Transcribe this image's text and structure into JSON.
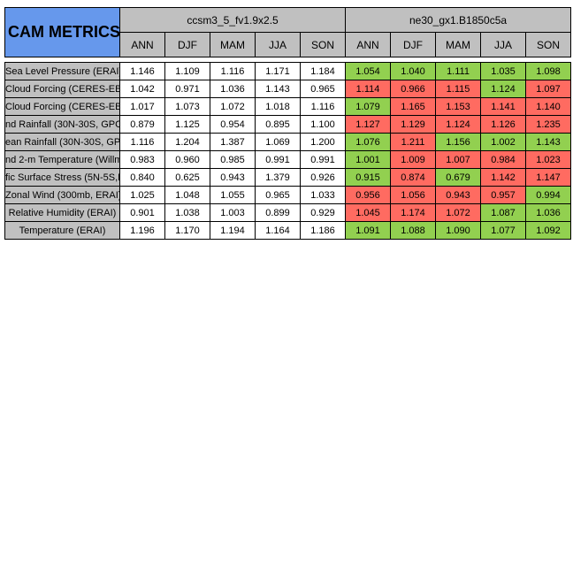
{
  "title": "CAM METRICS",
  "colors": {
    "blue": "#6698ec",
    "gray": "#c0c0c0",
    "green": "#92d050",
    "red": "#ff6b61",
    "white": "#ffffff"
  },
  "groups": [
    {
      "name": "ccsm3_5_fv1.9x2.5",
      "seasons": [
        "ANN",
        "DJF",
        "MAM",
        "JJA",
        "SON"
      ]
    },
    {
      "name": "ne30_gx1.B1850c5a",
      "seasons": [
        "ANN",
        "DJF",
        "MAM",
        "JJA",
        "SON"
      ]
    }
  ],
  "rows": [
    {
      "label": "Sea Level Pressure (ERAI)",
      "ccsm3": [
        "1.146",
        "1.109",
        "1.116",
        "1.171",
        "1.184"
      ],
      "ne30": [
        "1.054",
        "1.040",
        "1.111",
        "1.035",
        "1.098"
      ],
      "ne30_colors": [
        "green",
        "green",
        "green",
        "green",
        "green"
      ]
    },
    {
      "label": "Cloud Forcing (CERES-EB",
      "ccsm3": [
        "1.042",
        "0.971",
        "1.036",
        "1.143",
        "0.965"
      ],
      "ne30": [
        "1.114",
        "0.966",
        "1.115",
        "1.124",
        "1.097"
      ],
      "ne30_colors": [
        "red",
        "red",
        "red",
        "green",
        "red"
      ]
    },
    {
      "label": "Cloud Forcing (CERES-EB",
      "ccsm3": [
        "1.017",
        "1.073",
        "1.072",
        "1.018",
        "1.116"
      ],
      "ne30": [
        "1.079",
        "1.165",
        "1.153",
        "1.141",
        "1.140"
      ],
      "ne30_colors": [
        "green",
        "red",
        "red",
        "red",
        "red"
      ]
    },
    {
      "label": "nd Rainfall (30N-30S, GPC",
      "ccsm3": [
        "0.879",
        "1.125",
        "0.954",
        "0.895",
        "1.100"
      ],
      "ne30": [
        "1.127",
        "1.129",
        "1.124",
        "1.126",
        "1.235"
      ],
      "ne30_colors": [
        "red",
        "red",
        "red",
        "red",
        "red"
      ]
    },
    {
      "label": "ean Rainfall (30N-30S, GPC",
      "ccsm3": [
        "1.116",
        "1.204",
        "1.387",
        "1.069",
        "1.200"
      ],
      "ne30": [
        "1.076",
        "1.211",
        "1.156",
        "1.002",
        "1.143"
      ],
      "ne30_colors": [
        "green",
        "red",
        "green",
        "green",
        "green"
      ]
    },
    {
      "label": "nd 2-m Temperature (Willm",
      "ccsm3": [
        "0.983",
        "0.960",
        "0.985",
        "0.991",
        "0.991"
      ],
      "ne30": [
        "1.001",
        "1.009",
        "1.007",
        "0.984",
        "1.023"
      ],
      "ne30_colors": [
        "green",
        "red",
        "red",
        "red",
        "red"
      ]
    },
    {
      "label": "fic Surface Stress (5N-5S,E",
      "ccsm3": [
        "0.840",
        "0.625",
        "0.943",
        "1.379",
        "0.926"
      ],
      "ne30": [
        "0.915",
        "0.874",
        "0.679",
        "1.142",
        "1.147"
      ],
      "ne30_colors": [
        "green",
        "red",
        "green",
        "red",
        "red"
      ]
    },
    {
      "label": "Zonal Wind (300mb, ERAI)",
      "ccsm3": [
        "1.025",
        "1.048",
        "1.055",
        "0.965",
        "1.033"
      ],
      "ne30": [
        "0.956",
        "1.056",
        "0.943",
        "0.957",
        "0.994"
      ],
      "ne30_colors": [
        "red",
        "red",
        "red",
        "red",
        "green"
      ]
    },
    {
      "label": "Relative Humidity (ERAI)",
      "ccsm3": [
        "0.901",
        "1.038",
        "1.003",
        "0.899",
        "0.929"
      ],
      "ne30": [
        "1.045",
        "1.174",
        "1.072",
        "1.087",
        "1.036"
      ],
      "ne30_colors": [
        "red",
        "red",
        "red",
        "green",
        "green"
      ]
    },
    {
      "label": "Temperature (ERAI)",
      "ccsm3": [
        "1.196",
        "1.170",
        "1.194",
        "1.164",
        "1.186"
      ],
      "ne30": [
        "1.091",
        "1.088",
        "1.090",
        "1.077",
        "1.092"
      ],
      "ne30_colors": [
        "green",
        "green",
        "green",
        "green",
        "green"
      ]
    }
  ]
}
